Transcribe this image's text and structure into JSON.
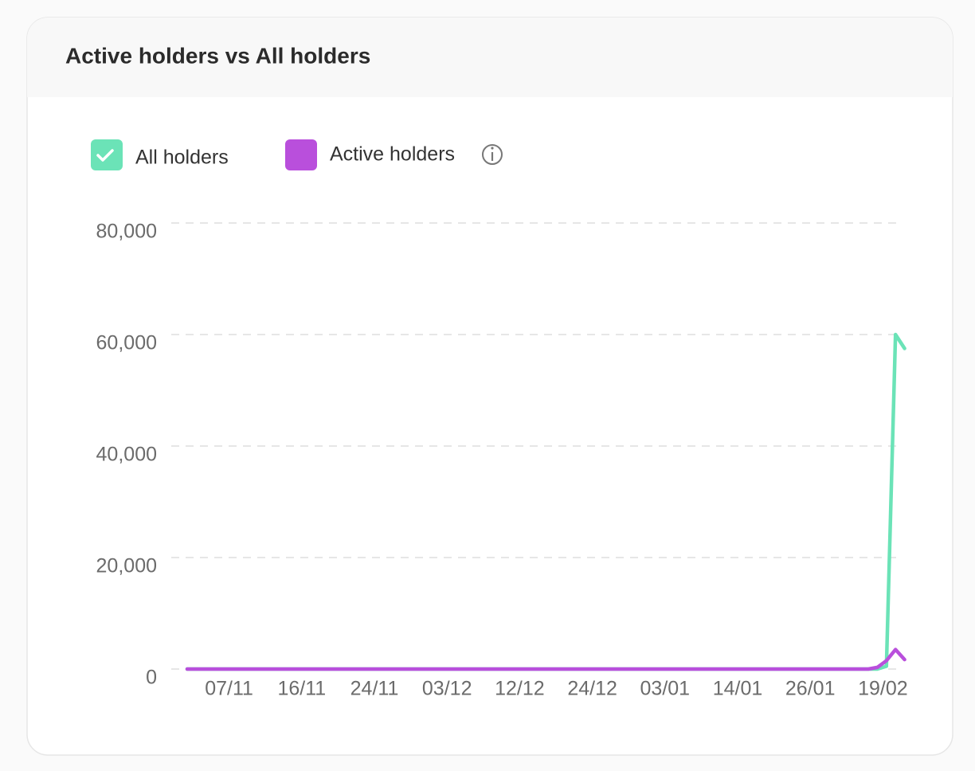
{
  "chart_data": {
    "type": "line",
    "title": "Active holders vs All holders",
    "categories": [
      null,
      null,
      null,
      null,
      "07/11",
      null,
      null,
      null,
      null,
      null,
      null,
      null,
      "16/11",
      null,
      null,
      null,
      null,
      null,
      null,
      null,
      "24/11",
      null,
      null,
      null,
      null,
      null,
      null,
      null,
      "03/12",
      null,
      null,
      null,
      null,
      null,
      null,
      null,
      "12/12",
      null,
      null,
      null,
      null,
      null,
      null,
      null,
      "24/12",
      null,
      null,
      null,
      null,
      null,
      null,
      null,
      "03/01",
      null,
      null,
      null,
      null,
      null,
      null,
      null,
      "14/01",
      null,
      null,
      null,
      null,
      null,
      null,
      null,
      "26/01",
      null,
      null,
      null,
      null,
      null,
      null,
      null,
      "19/02",
      null,
      null,
      null
    ],
    "series": [
      {
        "name": "All holders",
        "color": "#6be3b7",
        "values": [
          0,
          0,
          0,
          0,
          0,
          0,
          0,
          0,
          0,
          0,
          0,
          0,
          0,
          0,
          0,
          0,
          0,
          0,
          0,
          0,
          0,
          0,
          0,
          0,
          0,
          0,
          0,
          0,
          0,
          0,
          0,
          0,
          0,
          0,
          0,
          0,
          0,
          0,
          0,
          0,
          0,
          0,
          0,
          0,
          0,
          0,
          0,
          0,
          0,
          0,
          0,
          0,
          0,
          0,
          0,
          0,
          0,
          0,
          0,
          0,
          0,
          0,
          0,
          0,
          0,
          0,
          0,
          0,
          0,
          0,
          0,
          0,
          0,
          0,
          0,
          0,
          0,
          500,
          60000,
          57500
        ]
      },
      {
        "name": "Active holders",
        "color": "#b94fdc",
        "values": [
          0,
          0,
          0,
          0,
          0,
          0,
          0,
          0,
          0,
          0,
          0,
          0,
          0,
          0,
          0,
          0,
          0,
          0,
          0,
          0,
          0,
          0,
          0,
          0,
          0,
          0,
          0,
          0,
          0,
          0,
          0,
          0,
          0,
          0,
          0,
          0,
          0,
          0,
          0,
          0,
          0,
          0,
          0,
          0,
          0,
          0,
          0,
          0,
          0,
          0,
          0,
          0,
          0,
          0,
          0,
          0,
          0,
          0,
          0,
          0,
          0,
          0,
          0,
          0,
          0,
          0,
          0,
          0,
          0,
          0,
          0,
          0,
          0,
          0,
          0,
          0,
          300,
          1500,
          3500,
          1700
        ]
      }
    ],
    "ylim": [
      0,
      80000
    ],
    "yticks": [
      0,
      {
        "value": 20000,
        "label": "20,000"
      },
      {
        "value": 40000,
        "label": "40,000"
      },
      {
        "value": 60000,
        "label": "60,000"
      },
      {
        "value": 80000,
        "label": "80,000"
      }
    ],
    "grid": true
  }
}
